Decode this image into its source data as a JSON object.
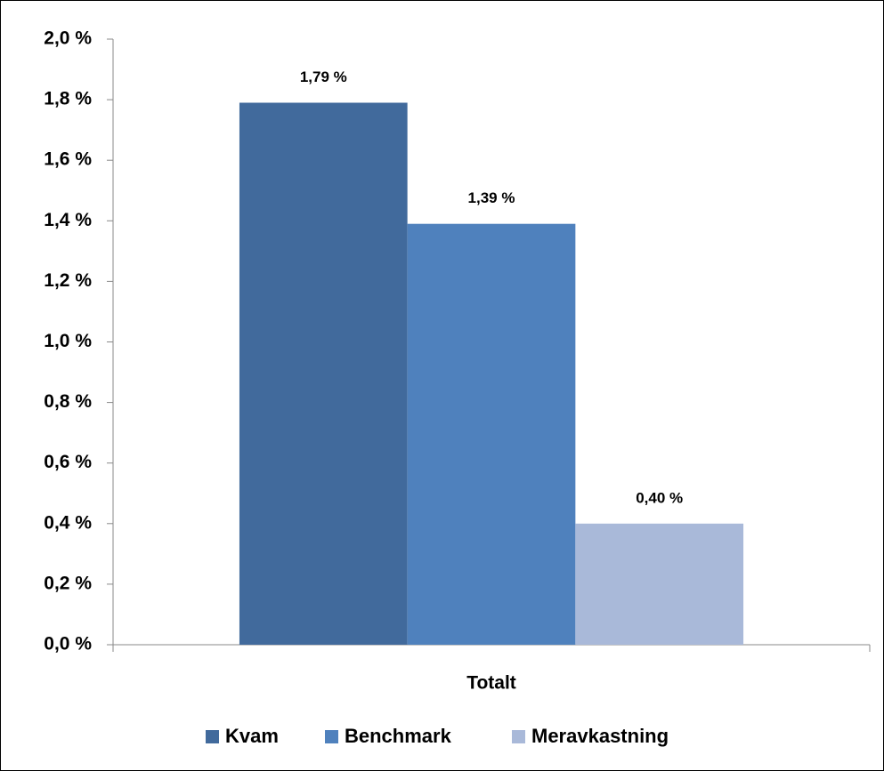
{
  "chart_data": {
    "type": "bar",
    "categories": [
      "Totalt"
    ],
    "series": [
      {
        "name": "Kvam",
        "color": "#416a9c",
        "values": [
          1.79
        ],
        "value_labels": [
          "1,79 %"
        ]
      },
      {
        "name": "Benchmark",
        "color": "#4f81bd",
        "values": [
          1.39
        ],
        "value_labels": [
          "1,39 %"
        ]
      },
      {
        "name": "Meravkastning",
        "color": "#a9b9d9",
        "values": [
          0.4
        ],
        "value_labels": [
          "0,40 %"
        ]
      }
    ],
    "ylim": [
      0,
      2
    ],
    "yticks": [
      {
        "value": 0,
        "label": "0,0 %"
      },
      {
        "value": 0.2,
        "label": "0,2 %"
      },
      {
        "value": 0.4,
        "label": "0,4 %"
      },
      {
        "value": 0.6,
        "label": "0,6 %"
      },
      {
        "value": 0.8,
        "label": "0,8 %"
      },
      {
        "value": 1.0,
        "label": "1,0 %"
      },
      {
        "value": 1.2,
        "label": "1,2 %"
      },
      {
        "value": 1.4,
        "label": "1,4 %"
      },
      {
        "value": 1.6,
        "label": "1,6 %"
      },
      {
        "value": 1.8,
        "label": "1,8 %"
      },
      {
        "value": 2.0,
        "label": "2,0 %"
      }
    ],
    "grid": false,
    "legend": "bottom"
  }
}
